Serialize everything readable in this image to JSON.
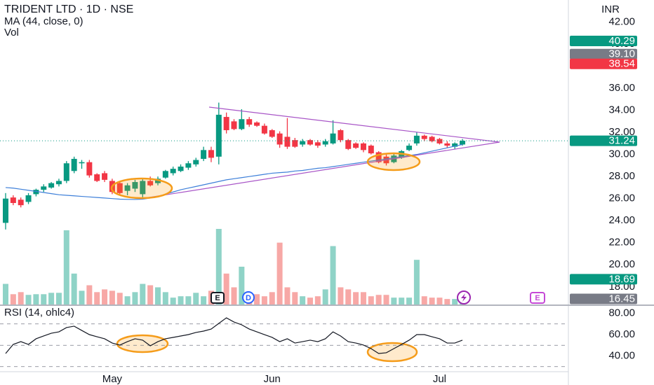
{
  "events": [
    "E",
    "D",
    "E"
  ],
  "chart_data": [
    {
      "type": "candlestick",
      "title": "TRIDENT LTD · 1D · NSE",
      "currency": "INR",
      "categories": [
        null,
        null,
        null,
        null,
        null,
        null,
        null,
        null,
        null,
        null,
        null,
        null,
        null,
        null,
        "May",
        null,
        null,
        null,
        null,
        null,
        null,
        null,
        null,
        null,
        null,
        null,
        null,
        null,
        null,
        null,
        null,
        null,
        null,
        null,
        null,
        "Jun",
        null,
        null,
        null,
        null,
        null,
        null,
        null,
        null,
        null,
        null,
        null,
        null,
        null,
        null,
        null,
        null,
        null,
        null,
        null,
        null,
        null,
        "Jul",
        null,
        null,
        null
      ],
      "open": [
        23.8,
        26.1,
        25.9,
        25.7,
        26.4,
        26.8,
        27.0,
        27.3,
        27.6,
        28.5,
        29.2,
        29.3,
        28.2,
        28.3,
        27.6,
        27.4,
        26.7,
        26.9,
        26.4,
        27.6,
        27.4,
        27.9,
        28.3,
        28.5,
        28.8,
        29.1,
        29.6,
        30.4,
        29.8,
        33.4,
        33.0,
        32.3,
        33.2,
        32.9,
        32.6,
        32.2,
        31.9,
        31.6,
        31.3,
        30.9,
        31.3,
        31.1,
        30.9,
        31.0,
        32.2,
        31.3,
        31.0,
        31.0,
        30.8,
        30.2,
        29.8,
        29.3,
        29.7,
        30.4,
        31.0,
        31.7,
        31.6,
        31.4,
        31.0,
        30.7,
        30.9
      ],
      "high": [
        26.5,
        26.3,
        26.1,
        26.5,
        26.9,
        27.3,
        27.5,
        27.8,
        29.4,
        29.8,
        29.5,
        29.5,
        28.3,
        28.5,
        27.8,
        27.6,
        27.4,
        27.7,
        27.8,
        28.0,
        28.0,
        28.6,
        28.9,
        29.1,
        29.4,
        29.7,
        30.7,
        30.7,
        34.7,
        33.8,
        33.2,
        34.1,
        33.4,
        33.0,
        32.8,
        32.3,
        32.1,
        33.3,
        31.5,
        31.4,
        31.4,
        31.3,
        31.4,
        33.1,
        32.3,
        31.4,
        31.1,
        31.1,
        30.9,
        30.3,
        30.0,
        30.1,
        30.4,
        31.0,
        32.0,
        31.8,
        31.7,
        31.5,
        31.2,
        31.1,
        31.4
      ],
      "low": [
        23.2,
        25.4,
        25.2,
        25.5,
        26.2,
        26.6,
        26.9,
        27.1,
        27.4,
        28.3,
        28.7,
        27.9,
        27.5,
        27.5,
        26.4,
        26.4,
        26.3,
        26.6,
        26.1,
        27.1,
        27.2,
        27.8,
        28.1,
        28.4,
        28.6,
        28.9,
        29.4,
        29.3,
        29.1,
        31.9,
        32.2,
        32.2,
        32.5,
        32.5,
        31.8,
        31.5,
        30.6,
        30.5,
        30.6,
        30.7,
        30.8,
        30.6,
        30.7,
        30.9,
        31.1,
        30.4,
        30.5,
        30.2,
        30.0,
        29.2,
        29.0,
        29.2,
        29.6,
        30.3,
        30.8,
        31.2,
        31.1,
        30.9,
        30.6,
        30.5,
        30.8
      ],
      "close": [
        26.0,
        25.6,
        25.4,
        26.3,
        26.8,
        27.1,
        27.4,
        27.6,
        29.2,
        29.6,
        29.3,
        28.1,
        27.6,
        27.7,
        26.6,
        26.5,
        27.2,
        27.5,
        27.6,
        27.2,
        27.8,
        28.5,
        28.7,
        28.9,
        29.2,
        29.5,
        30.4,
        29.7,
        33.6,
        32.2,
        32.3,
        33.2,
        32.7,
        32.6,
        31.9,
        31.6,
        30.9,
        30.7,
        30.7,
        31.2,
        30.9,
        30.8,
        31.2,
        31.9,
        31.3,
        30.5,
        30.6,
        30.4,
        30.1,
        29.3,
        29.2,
        29.9,
        30.3,
        30.8,
        31.7,
        31.4,
        31.2,
        31.0,
        30.8,
        31.0,
        31.24
      ],
      "up_color": "#089981",
      "down_color": "#f23645",
      "series": [
        {
          "name": "MA (44, close, 0)",
          "color": "#3d7fd9",
          "values": [
            27.0,
            26.95,
            26.85,
            26.75,
            26.65,
            26.55,
            26.45,
            26.35,
            26.3,
            26.25,
            26.2,
            26.15,
            26.1,
            26.05,
            26.0,
            25.95,
            25.93,
            25.92,
            25.95,
            26.05,
            26.2,
            26.4,
            26.6,
            26.8,
            26.95,
            27.1,
            27.25,
            27.4,
            27.55,
            27.7,
            27.8,
            27.9,
            28.0,
            28.1,
            28.2,
            28.3,
            28.35,
            28.4,
            28.5,
            28.55,
            28.65,
            28.75,
            28.8,
            28.9,
            29.0,
            29.1,
            29.2,
            29.3,
            29.4,
            29.5,
            29.6,
            29.7,
            29.8,
            29.9,
            30.0,
            30.15,
            30.3,
            30.45,
            30.6,
            30.75,
            30.9
          ]
        }
      ],
      "ylim": [
        16.4,
        44
      ],
      "yticks": [
        {
          "value": 18,
          "label": "18.00"
        },
        {
          "value": 20,
          "label": "20.00"
        },
        {
          "value": 22,
          "label": "22.00"
        },
        {
          "value": 24,
          "label": "24.00"
        },
        {
          "value": 26,
          "label": "26.00"
        },
        {
          "value": 28,
          "label": "28.00"
        },
        {
          "value": 30,
          "label": "30.00"
        },
        {
          "value": 32,
          "label": "32.00"
        },
        {
          "value": 34,
          "label": "34.00"
        },
        {
          "value": 36,
          "label": "36.00"
        },
        {
          "value": 38,
          "label": "38.00"
        },
        {
          "value": 40,
          "label": "40.00"
        },
        {
          "value": 42,
          "label": "42.00"
        }
      ],
      "price_labels": {
        "values": [
          40.29,
          39.1,
          38.54,
          31.24,
          18.69,
          16.45
        ],
        "value_labels": [
          "40.29",
          "39.10",
          "38.54",
          "31.24",
          "18.69",
          "16.45"
        ],
        "colors": [
          "#089981",
          "#787b86",
          "#f23645",
          "#089981",
          "#089981",
          "#787b86"
        ]
      }
    },
    {
      "type": "bar",
      "title": "Vol",
      "up_color": "#8fd3c7",
      "down_color": "#f7a8a6",
      "values": [
        30,
        15,
        18,
        14,
        15,
        15,
        17,
        17,
        108,
        45,
        20,
        28,
        18,
        22,
        20,
        17,
        12,
        18,
        30,
        28,
        25,
        18,
        10,
        12,
        12,
        17,
        12,
        20,
        110,
        45,
        25,
        55,
        18,
        15,
        12,
        18,
        90,
        25,
        18,
        12,
        10,
        12,
        22,
        85,
        25,
        22,
        18,
        18,
        12,
        14,
        14,
        10,
        10,
        10,
        65,
        12,
        10,
        10,
        8,
        8,
        6
      ]
    },
    {
      "type": "line",
      "title": "RSI (14, ohlc4)",
      "color": "#131722",
      "values": [
        42.3,
        50.8,
        53.4,
        50.8,
        56.1,
        58.7,
        61.3,
        62.6,
        66.6,
        67.9,
        63.9,
        60,
        58,
        56.1,
        52.1,
        50.2,
        53.4,
        56.1,
        54.8,
        49.5,
        53.4,
        56.1,
        57.4,
        58.7,
        60,
        62,
        63.3,
        65.2,
        70.5,
        75.7,
        71.8,
        69.2,
        65.2,
        62.6,
        60,
        57.4,
        53.4,
        56.1,
        52.1,
        53.4,
        54.8,
        53.4,
        56.1,
        62.6,
        58.7,
        53.4,
        52.1,
        50.2,
        46.9,
        42.3,
        43,
        46.9,
        50.8,
        54.8,
        60,
        60,
        58,
        56.1,
        52.1,
        52.1,
        54.8
      ],
      "levels": [
        70,
        50,
        30
      ],
      "ylim": [
        25.9,
        86.9
      ],
      "yticks": [
        {
          "value": 40,
          "label": "40.00"
        },
        {
          "value": 60,
          "label": "60.00"
        },
        {
          "value": 80,
          "label": "80.00"
        }
      ]
    }
  ]
}
